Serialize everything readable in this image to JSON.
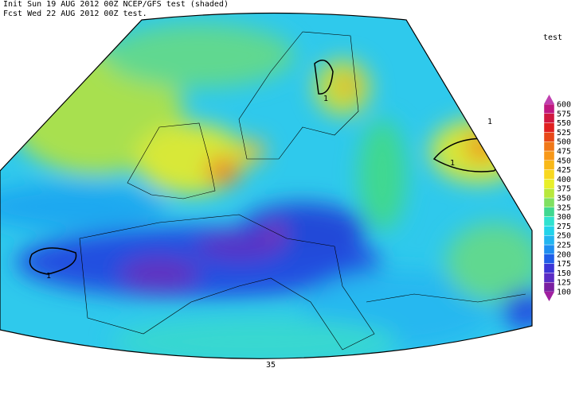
{
  "header": {
    "line1": "Init  Sun 19 AUG 2012 00Z  NCEP/GFS test (shaded)",
    "line2": "Fcst Wed 22 AUG 2012 00Z  test."
  },
  "colorbar": {
    "title": "test",
    "levels": [
      100,
      125,
      150,
      175,
      200,
      225,
      250,
      275,
      300,
      325,
      350,
      375,
      400,
      425,
      450,
      475,
      500,
      525,
      550,
      575,
      600
    ],
    "colors": [
      "#7a1fa0",
      "#5a2cc4",
      "#3b35d6",
      "#1f5ee8",
      "#1e8ef0",
      "#22b5f0",
      "#22d3ea",
      "#30e2d0",
      "#40d890",
      "#80e060",
      "#b8e83c",
      "#e8ef2a",
      "#f8d820",
      "#f8b818",
      "#f89818",
      "#f07818",
      "#e84818",
      "#e02020",
      "#d01840",
      "#c01880"
    ],
    "under_color": "#a020a0",
    "over_color": "#c040b0"
  },
  "map": {
    "labels": [
      "1",
      "1",
      "1",
      "1",
      "35"
    ]
  }
}
